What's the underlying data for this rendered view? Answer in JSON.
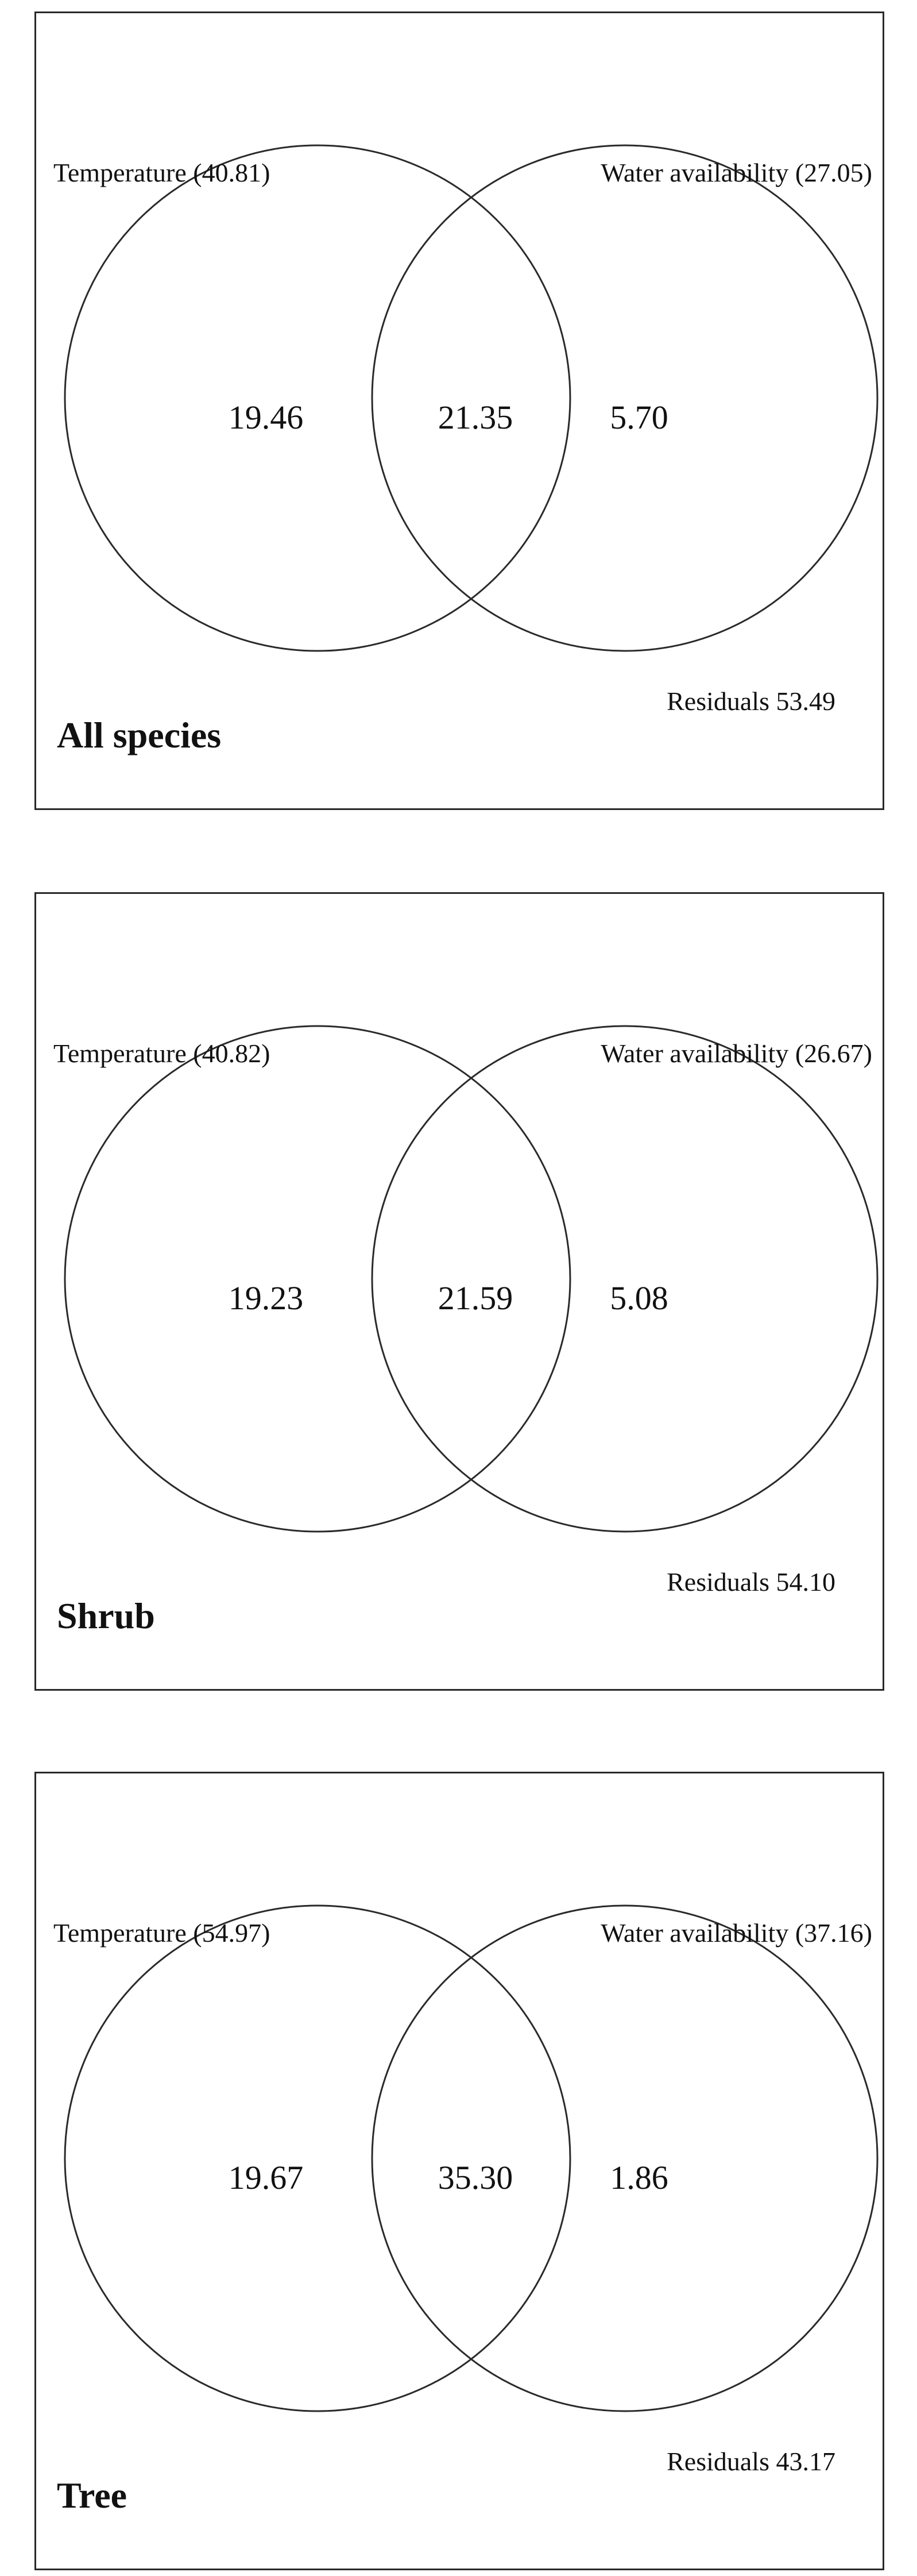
{
  "panels": [
    {
      "title": "All species",
      "set_a": {
        "label": "Temperature (40.81)"
      },
      "set_b": {
        "label": "Water availability (27.05)"
      },
      "only_a": "19.46",
      "overlap": "21.35",
      "only_b": "5.70",
      "residuals": "Residuals 53.49"
    },
    {
      "title": "Shrub",
      "set_a": {
        "label": "Temperature (40.82)"
      },
      "set_b": {
        "label": "Water availability (26.67)"
      },
      "only_a": "19.23",
      "overlap": "21.59",
      "only_b": "5.08",
      "residuals": "Residuals 54.10"
    },
    {
      "title": "Tree",
      "set_a": {
        "label": "Temperature (54.97)"
      },
      "set_b": {
        "label": "Water availability (37.16)"
      },
      "only_a": "19.67",
      "overlap": "35.30",
      "only_b": "1.86",
      "residuals": "Residuals 43.17"
    }
  ]
}
